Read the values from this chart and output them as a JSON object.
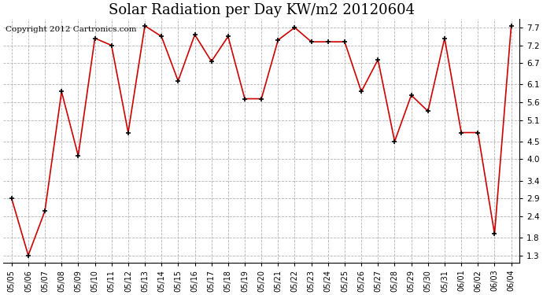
{
  "title": "Solar Radiation per Day KW/m2 20120604",
  "copyright_text": "Copyright 2012 Cartronics.com",
  "dates": [
    "05/05",
    "05/06",
    "05/07",
    "05/08",
    "05/09",
    "05/10",
    "05/11",
    "05/12",
    "05/13",
    "05/14",
    "05/15",
    "05/16",
    "05/17",
    "05/18",
    "05/19",
    "05/20",
    "05/21",
    "05/22",
    "05/23",
    "05/24",
    "05/25",
    "05/26",
    "05/27",
    "05/28",
    "05/29",
    "05/30",
    "05/31",
    "06/01",
    "06/02",
    "06/03",
    "06/04"
  ],
  "values": [
    2.9,
    1.3,
    2.55,
    5.9,
    4.1,
    7.4,
    7.2,
    4.75,
    7.75,
    7.45,
    6.2,
    7.5,
    6.75,
    7.45,
    5.7,
    5.7,
    7.35,
    7.7,
    7.3,
    7.3,
    7.3,
    5.9,
    6.8,
    4.5,
    5.8,
    5.35,
    7.4,
    4.75,
    4.75,
    1.9,
    7.75
  ],
  "line_color": "#cc0000",
  "bg_color": "#ffffff",
  "grid_color": "#aaaaaa",
  "yticks": [
    1.3,
    1.8,
    2.4,
    2.9,
    3.4,
    4.0,
    4.5,
    5.1,
    5.6,
    6.1,
    6.7,
    7.2,
    7.7
  ],
  "ylim": [
    1.1,
    7.95
  ],
  "title_fontsize": 13,
  "copyright_fontsize": 7.5,
  "tick_fontsize": 7.5,
  "xtick_fontsize": 7
}
